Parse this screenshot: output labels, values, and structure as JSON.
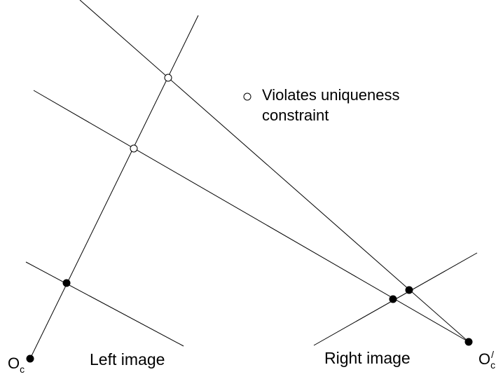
{
  "legend": {
    "line1": "Violates uniqueness",
    "line2": "constraint"
  },
  "labels": {
    "left_image": "Left image",
    "right_image": "Right image",
    "left_origin_main": "O",
    "left_origin_sub": "c",
    "right_origin_main": "O",
    "right_origin_sub": "c",
    "right_origin_prime": "/"
  },
  "colors": {
    "stroke": "#000000",
    "background": "#ffffff"
  }
}
